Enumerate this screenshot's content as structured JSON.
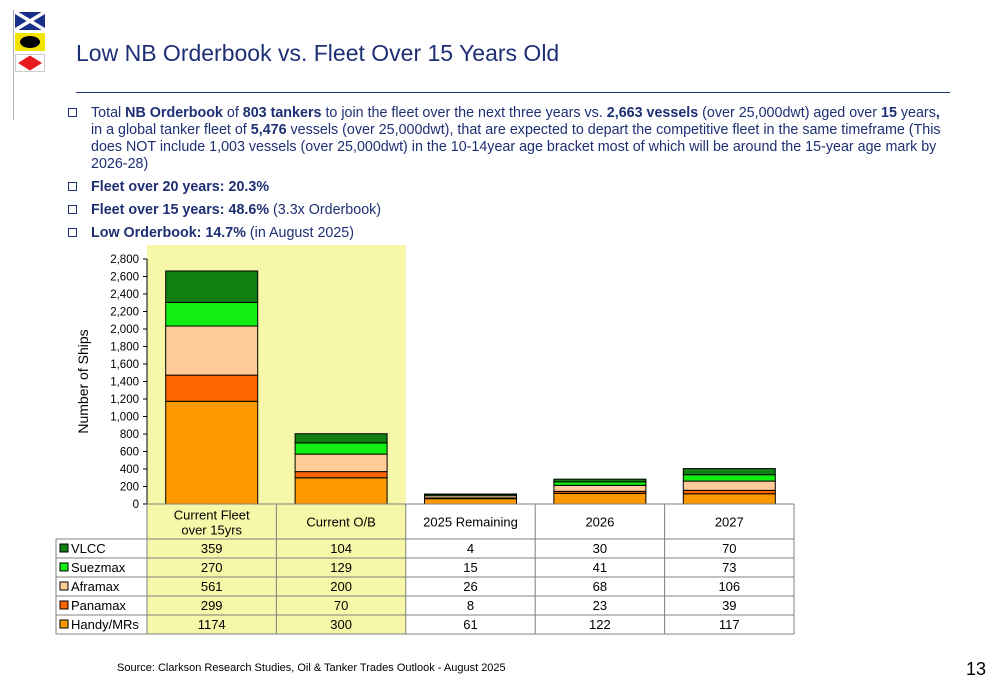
{
  "title": "Low NB Orderbook vs. Fleet Over 15 Years Old",
  "bullets": [
    {
      "runs": [
        {
          "t": "Total ",
          "b": false
        },
        {
          "t": "NB Orderbook",
          "b": true
        },
        {
          "t": " of ",
          "b": false
        },
        {
          "t": "803 tankers",
          "b": true
        },
        {
          "t": " to join the fleet over the next three years vs. ",
          "b": false
        },
        {
          "t": "2,663 vessels",
          "b": true
        },
        {
          "t": " (over 25,000dwt) aged over ",
          "b": false
        },
        {
          "t": "15",
          "b": true
        },
        {
          "t": " years",
          "b": false
        },
        {
          "t": ",",
          "b": true
        },
        {
          "t": " in a global tanker fleet of ",
          "b": false
        },
        {
          "t": "5,476",
          "b": true
        },
        {
          "t": " vessels (over 25,000dwt), that are expected to depart the competitive fleet in the same timeframe (This does NOT include 1,003 vessels (over 25,000dwt) in the 10-14year age bracket most of which will be around the 15-year age mark by 2026-28)",
          "b": false
        }
      ]
    },
    {
      "runs": [
        {
          "t": "Fleet over 20 years: 20.3%",
          "b": true
        }
      ]
    },
    {
      "runs": [
        {
          "t": "Fleet over 15 years: 48.6%",
          "b": true
        },
        {
          "t": " (3.3x Orderbook)",
          "b": false
        }
      ]
    },
    {
      "runs": [
        {
          "t": "Low Orderbook: 14.7%",
          "b": true
        },
        {
          "t": " (in August 2025)",
          "b": false
        }
      ]
    }
  ],
  "chart_data": {
    "type": "bar",
    "stacked": true,
    "ylabel": "Number of Ships",
    "ylim": [
      0,
      2800
    ],
    "yticks": [
      0,
      200,
      400,
      600,
      800,
      1000,
      1200,
      1400,
      1600,
      1800,
      2000,
      2200,
      2400,
      2600,
      2800
    ],
    "ytick_labels": [
      "0",
      "200",
      "400",
      "600",
      "800",
      "1,000",
      "1,200",
      "1,400",
      "1,600",
      "1,800",
      "2,000",
      "2,200",
      "2,400",
      "2,600",
      "2,800"
    ],
    "categories": [
      "Current Fleet over 15yrs",
      "Current O/B",
      "2025 Remaining",
      "2026",
      "2027"
    ],
    "category_lines": [
      [
        "Current Fleet",
        "over 15yrs"
      ],
      [
        "Current O/B"
      ],
      [
        "2025 Remaining"
      ],
      [
        "2026"
      ],
      [
        "2027"
      ]
    ],
    "highlight_categories": [
      0,
      1
    ],
    "highlight_color": "#f7f7a9",
    "series": [
      {
        "name": "VLCC",
        "color": "#118011",
        "values": [
          359,
          104,
          4,
          30,
          70
        ]
      },
      {
        "name": "Suezmax",
        "color": "#11ee11",
        "values": [
          270,
          129,
          15,
          41,
          73
        ]
      },
      {
        "name": "Aframax",
        "color": "#ffcc99",
        "values": [
          561,
          200,
          26,
          68,
          106
        ]
      },
      {
        "name": "Panamax",
        "color": "#ff6600",
        "values": [
          299,
          70,
          8,
          23,
          39
        ]
      },
      {
        "name": "Handy/MRs",
        "color": "#ff9900",
        "values": [
          1174,
          300,
          61,
          122,
          117
        ]
      }
    ],
    "grid": false,
    "legend": "data-table"
  },
  "source": "Source: Clarkson Research Studies, Oil & Tanker Trades Outlook  - August 2025",
  "page_number": "13"
}
